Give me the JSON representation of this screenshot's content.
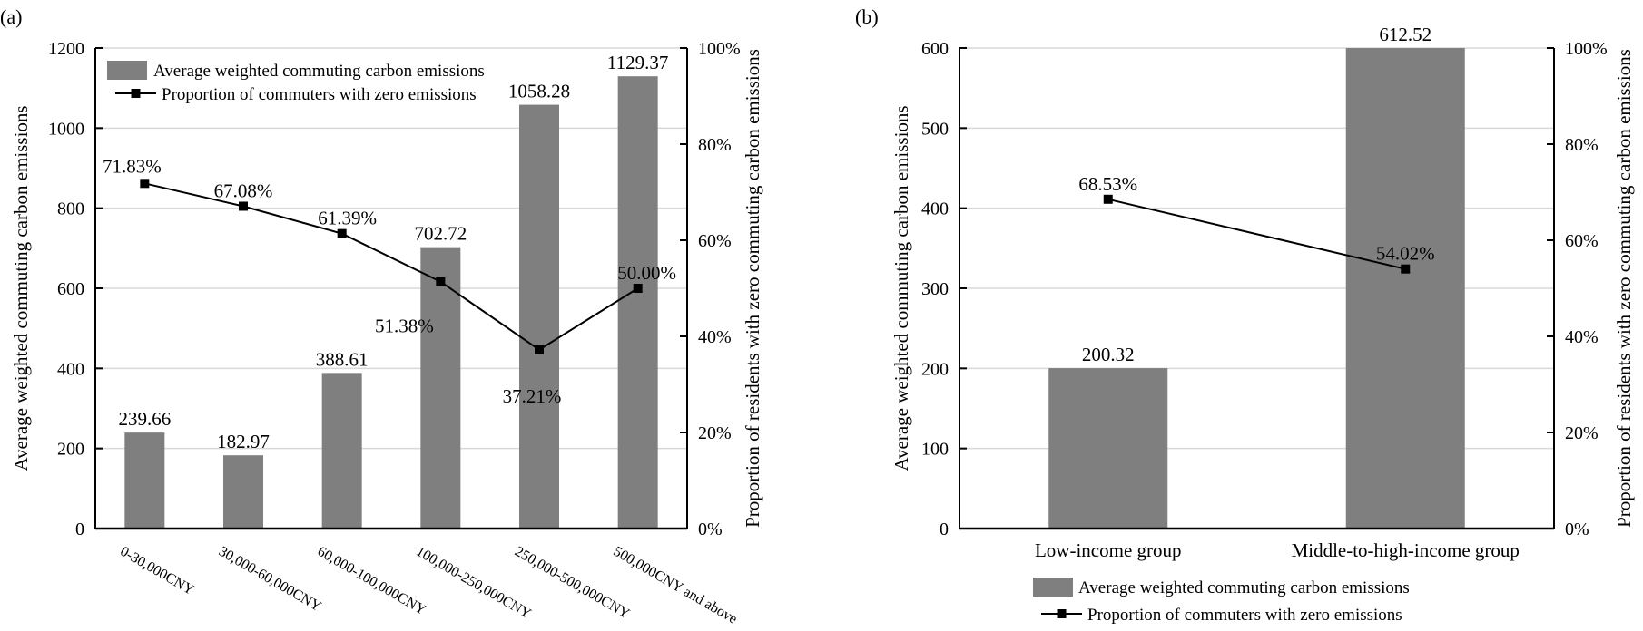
{
  "colors": {
    "bar": "#7f7f7f",
    "line": "#000000",
    "grid": "#d9d9d9"
  },
  "chart_data": [
    {
      "panel_label": "(a)",
      "type": "bar+line",
      "categories": [
        "0-30,000CNY",
        "30,000-60,000CNY",
        "60,000-100,000CNY",
        "100,000-250,000CNY",
        "250,000-500,000CNY",
        "500,000CNY and above"
      ],
      "series": [
        {
          "name": "Average weighted commuting carbon emissions",
          "type": "bar",
          "axis": "left",
          "values": [
            239.66,
            182.97,
            388.61,
            702.72,
            1058.28,
            1129.37
          ],
          "labels": [
            "239.66",
            "182.97",
            "388.61",
            "702.72",
            "1058.28",
            "1129.37"
          ]
        },
        {
          "name": "Proportion of commuters with zero emissions",
          "type": "line",
          "axis": "right",
          "values": [
            71.83,
            67.08,
            61.39,
            51.38,
            37.21,
            50.0
          ],
          "labels": [
            "71.83%",
            "67.08%",
            "61.39%",
            "51.38%",
            "37.21%",
            "50.00%"
          ]
        }
      ],
      "ylabel": "Average weighted commuting carbon emissions",
      "y2label": "Proportion of residents with zero commuting carbon emissions",
      "ylim": [
        0,
        1200
      ],
      "yticks": [
        "0",
        "200",
        "400",
        "600",
        "800",
        "1000",
        "1200"
      ],
      "y2lim": [
        0,
        100
      ],
      "y2ticks": [
        "0%",
        "20%",
        "40%",
        "60%",
        "80%",
        "100%"
      ],
      "grid": true,
      "legend": "top-left"
    },
    {
      "panel_label": "(b)",
      "type": "bar+line",
      "categories": [
        "Low-income group",
        "Middle-to-high-income group"
      ],
      "series": [
        {
          "name": "Average weighted commuting carbon emissions",
          "type": "bar",
          "axis": "left",
          "values": [
            200.32,
            612.52
          ],
          "labels": [
            "200.32",
            "612.52"
          ]
        },
        {
          "name": "Proportion of commuters with zero emissions",
          "type": "line",
          "axis": "right",
          "values": [
            68.53,
            54.02
          ],
          "labels": [
            "68.53%",
            "54.02%"
          ]
        }
      ],
      "ylabel": "Average weighted commuting carbon emissions",
      "y2label": "Proportion of residents with zero commuting carbon emissions",
      "ylim": [
        0,
        600
      ],
      "yticks": [
        "0",
        "100",
        "200",
        "300",
        "400",
        "500",
        "600"
      ],
      "y2lim": [
        0,
        100
      ],
      "y2ticks": [
        "0%",
        "20%",
        "40%",
        "60%",
        "80%",
        "100%"
      ],
      "grid": true,
      "legend": "bottom"
    }
  ]
}
